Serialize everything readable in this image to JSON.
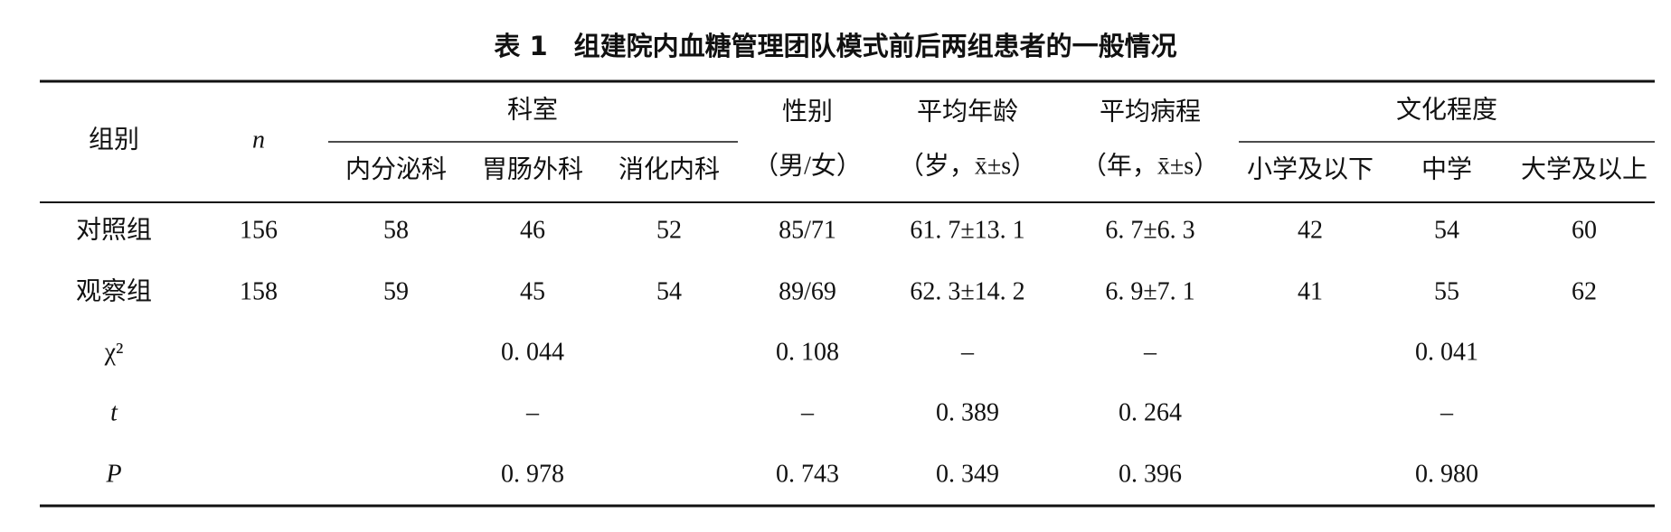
{
  "title": "表 1　组建院内血糖管理团队模式前后两组患者的一般情况",
  "table": {
    "header": {
      "group": "组别",
      "n": "n",
      "department": {
        "label": "科室",
        "columns": [
          "内分泌科",
          "胃肠外科",
          "消化内科"
        ]
      },
      "gender": [
        "性别",
        "（男/女）"
      ],
      "age": [
        "平均年龄",
        "（岁，x̄±s）"
      ],
      "duration": [
        "平均病程",
        "（年，x̄±s）"
      ],
      "education": {
        "label": "文化程度",
        "columns": [
          "小学及以下",
          "中学",
          "大学及以上"
        ]
      }
    },
    "rows": [
      [
        "对照组",
        "156",
        "58",
        "46",
        "52",
        "85/71",
        "61. 7±13. 1",
        "6. 7±6. 3",
        "42",
        "54",
        "60"
      ],
      [
        "观察组",
        "158",
        "59",
        "45",
        "54",
        "89/69",
        "62. 3±14. 2",
        "6. 9±7. 1",
        "41",
        "55",
        "62"
      ]
    ],
    "stats": [
      {
        "label": "χ²",
        "department": "0. 044",
        "gender": "0. 108",
        "age": "–",
        "duration": "–",
        "education": "0. 041"
      },
      {
        "label": "t",
        "department": "–",
        "gender": "–",
        "age": "0. 389",
        "duration": "0. 264",
        "education": "–"
      },
      {
        "label": "P",
        "department": "0. 978",
        "gender": "0. 743",
        "age": "0. 349",
        "duration": "0. 396",
        "education": "0. 980"
      }
    ]
  }
}
